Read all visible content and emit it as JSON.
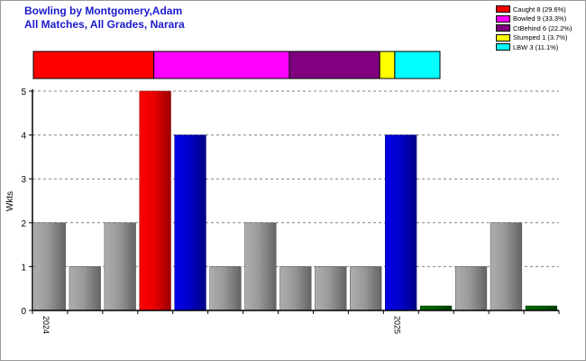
{
  "title": {
    "line1": "Bowling by Montgomery,Adam",
    "line2": "All Matches, All Grades, Narara"
  },
  "colors": {
    "title": "#1a1acc",
    "default_bar": "#a6a6a6",
    "grid": "#808080"
  },
  "chart_data": {
    "type": "bar",
    "ylabel": "Wkts",
    "ylim": [
      0,
      5
    ],
    "yticks": [
      "0",
      "1",
      "2",
      "3",
      "4",
      "5"
    ],
    "grid": true,
    "legend_position": "top-right",
    "xtick_labels": [
      {
        "label": "2024",
        "at_bar": 0
      },
      {
        "label": "2025",
        "at_bar": 10
      }
    ],
    "bars": [
      {
        "value": 2,
        "color": "#a6a6a6"
      },
      {
        "value": 1,
        "color": "#a6a6a6"
      },
      {
        "value": 2,
        "color": "#a6a6a6"
      },
      {
        "value": 5,
        "color": "#ff0000"
      },
      {
        "value": 4,
        "color": "#0000dd"
      },
      {
        "value": 1,
        "color": "#a6a6a6"
      },
      {
        "value": 2,
        "color": "#a6a6a6"
      },
      {
        "value": 1,
        "color": "#a6a6a6"
      },
      {
        "value": 1,
        "color": "#a6a6a6"
      },
      {
        "value": 1,
        "color": "#a6a6a6"
      },
      {
        "value": 4,
        "color": "#0000dd"
      },
      {
        "value": 0,
        "color": "#006400"
      },
      {
        "value": 1,
        "color": "#a6a6a6"
      },
      {
        "value": 2,
        "color": "#a6a6a6"
      },
      {
        "value": 0,
        "color": "#006400"
      }
    ],
    "dismissals": [
      {
        "label": "Caught 8 (29.6%)",
        "count": 8,
        "color": "#ff0000"
      },
      {
        "label": "Bowled 9 (33.3%)",
        "count": 9,
        "color": "#ff00ff"
      },
      {
        "label": "CtBehind 6 (22.2%)",
        "count": 6,
        "color": "#800080"
      },
      {
        "label": "Stumped 1 (3.7%)",
        "count": 1,
        "color": "#ffff00"
      },
      {
        "label": "LBW 3 (11.1%)",
        "count": 3,
        "color": "#00ffff"
      }
    ]
  }
}
